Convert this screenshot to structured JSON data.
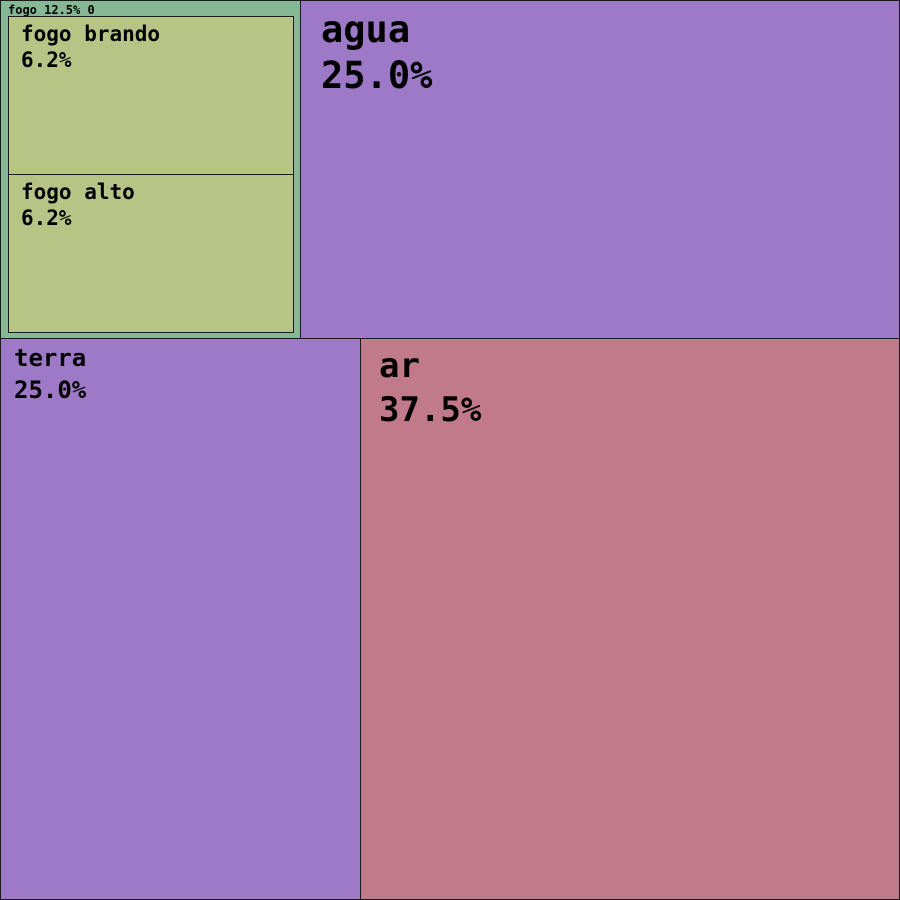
{
  "chart_data": {
    "type": "treemap",
    "colors": {
      "fogo": "#86b896",
      "fogo_leaf": "#b6c486",
      "agua": "#9d79c7",
      "terra": "#9d79c7",
      "ar": "#c17a8a",
      "border": "#1a1a1a"
    },
    "nodes": [
      {
        "id": "fogo",
        "name": "fogo",
        "pct": "12.5%",
        "value": 12.5,
        "depth_label": "0",
        "header": "fogo 12.5% 0",
        "children": [
          {
            "id": "fogo-brando",
            "name": "fogo brando",
            "pct": "6.2%",
            "value": 6.25
          },
          {
            "id": "fogo-alto",
            "name": "fogo alto",
            "pct": "6.2%",
            "value": 6.25
          }
        ]
      },
      {
        "id": "agua",
        "name": "agua",
        "pct": "25.0%",
        "value": 25.0
      },
      {
        "id": "terra",
        "name": "terra",
        "pct": "25.0%",
        "value": 25.0
      },
      {
        "id": "ar",
        "name": "ar",
        "pct": "37.5%",
        "value": 37.5
      }
    ]
  }
}
